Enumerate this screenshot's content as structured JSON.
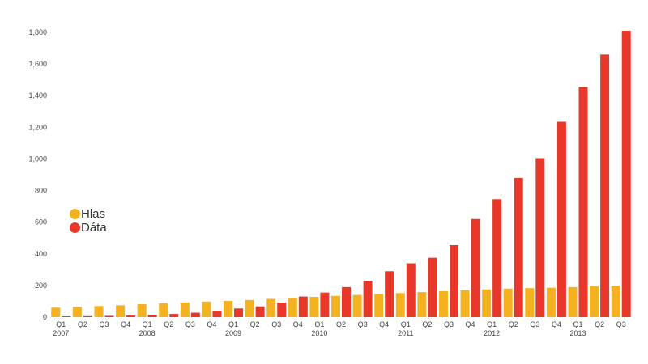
{
  "chart_data": {
    "type": "bar",
    "title": "",
    "xlabel": "",
    "ylabel": "",
    "ylim": [
      0,
      1800
    ],
    "yticks": [
      0,
      200,
      400,
      600,
      800,
      1000,
      1200,
      1400,
      1600,
      1800
    ],
    "ytick_labels": [
      "0",
      "200",
      "400",
      "600",
      "800",
      "1,000",
      "1,200",
      "1,400",
      "1,600",
      "1,800"
    ],
    "grid": false,
    "legend_position": "left",
    "categories": [
      "Q1 2007",
      "Q2 2007",
      "Q3 2007",
      "Q4 2007",
      "Q1 2008",
      "Q2 2008",
      "Q3 2008",
      "Q4 2008",
      "Q1 2009",
      "Q2 2009",
      "Q3 2009",
      "Q4 2009",
      "Q1 2010",
      "Q2 2010",
      "Q3 2010",
      "Q4 2010",
      "Q1 2011",
      "Q2 2011",
      "Q3 2011",
      "Q4 2011",
      "Q1 2012",
      "Q2 2012",
      "Q3 2012",
      "Q4 2012",
      "Q1 2013",
      "Q2 2013",
      "Q3 2013"
    ],
    "quarter_labels": [
      "Q1",
      "Q2",
      "Q3",
      "Q4",
      "Q1",
      "Q2",
      "Q3",
      "Q4",
      "Q1",
      "Q2",
      "Q3",
      "Q4",
      "Q1",
      "Q2",
      "Q3",
      "Q4",
      "Q1",
      "Q2",
      "Q3",
      "Q4",
      "Q1",
      "Q2",
      "Q3",
      "Q4",
      "Q1",
      "Q2",
      "Q3"
    ],
    "year_labels": [
      "2007",
      "",
      "",
      "",
      "2008",
      "",
      "",
      "",
      "2009",
      "",
      "",
      "",
      "2010",
      "",
      "",
      "",
      "2011",
      "",
      "",
      "",
      "2012",
      "",
      "",
      "",
      "2013",
      "",
      ""
    ],
    "series": [
      {
        "name": "Hlas",
        "color": "#F5B220",
        "values": [
          60,
          65,
          70,
          75,
          82,
          88,
          92,
          98,
          102,
          108,
          115,
          122,
          128,
          134,
          140,
          146,
          152,
          158,
          164,
          170,
          175,
          180,
          183,
          186,
          190,
          195,
          198
        ]
      },
      {
        "name": "Dáta",
        "color": "#E8382A",
        "values": [
          5,
          6,
          8,
          10,
          14,
          20,
          28,
          40,
          55,
          68,
          92,
          130,
          155,
          190,
          230,
          290,
          340,
          375,
          455,
          620,
          745,
          880,
          1005,
          1235,
          1455,
          1660,
          1810
        ]
      }
    ]
  }
}
